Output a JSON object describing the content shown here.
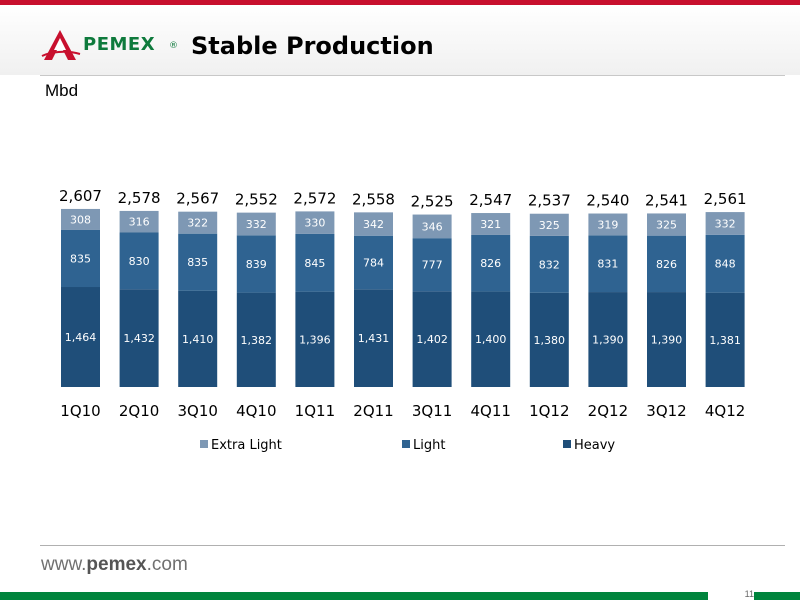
{
  "header": {
    "title": "Stable Production",
    "logo_text": "PEMEX",
    "unit_label": "Mbd"
  },
  "footer": {
    "url_prefix": "www.",
    "url_brand": "pemex",
    "url_suffix": ".com",
    "page_number": "11"
  },
  "colors": {
    "extra_light": "#7e98b4",
    "light": "#2f6391",
    "heavy": "#1f4e79",
    "brand_red": "#c8102e",
    "brand_green": "#00843d"
  },
  "chart_data": {
    "type": "bar",
    "stacked": true,
    "categories": [
      "1Q10",
      "2Q10",
      "3Q10",
      "4Q10",
      "1Q11",
      "2Q11",
      "3Q11",
      "4Q11",
      "1Q12",
      "2Q12",
      "3Q12",
      "4Q12"
    ],
    "series": [
      {
        "name": "Heavy",
        "values": [
          1464,
          1432,
          1410,
          1382,
          1396,
          1431,
          1402,
          1400,
          1380,
          1390,
          1390,
          1381
        ]
      },
      {
        "name": "Light",
        "values": [
          835,
          830,
          835,
          839,
          845,
          784,
          777,
          826,
          832,
          831,
          826,
          848
        ]
      },
      {
        "name": "Extra Light",
        "values": [
          308,
          316,
          322,
          332,
          330,
          342,
          346,
          321,
          325,
          319,
          325,
          332
        ]
      }
    ],
    "totals": [
      2607,
      2578,
      2567,
      2552,
      2572,
      2558,
      2525,
      2547,
      2537,
      2540,
      2541,
      2561
    ],
    "legend": [
      "Extra Light",
      "Light",
      "Heavy"
    ],
    "legend_position": "bottom",
    "ylim": [
      0,
      2700
    ],
    "grid": false
  }
}
